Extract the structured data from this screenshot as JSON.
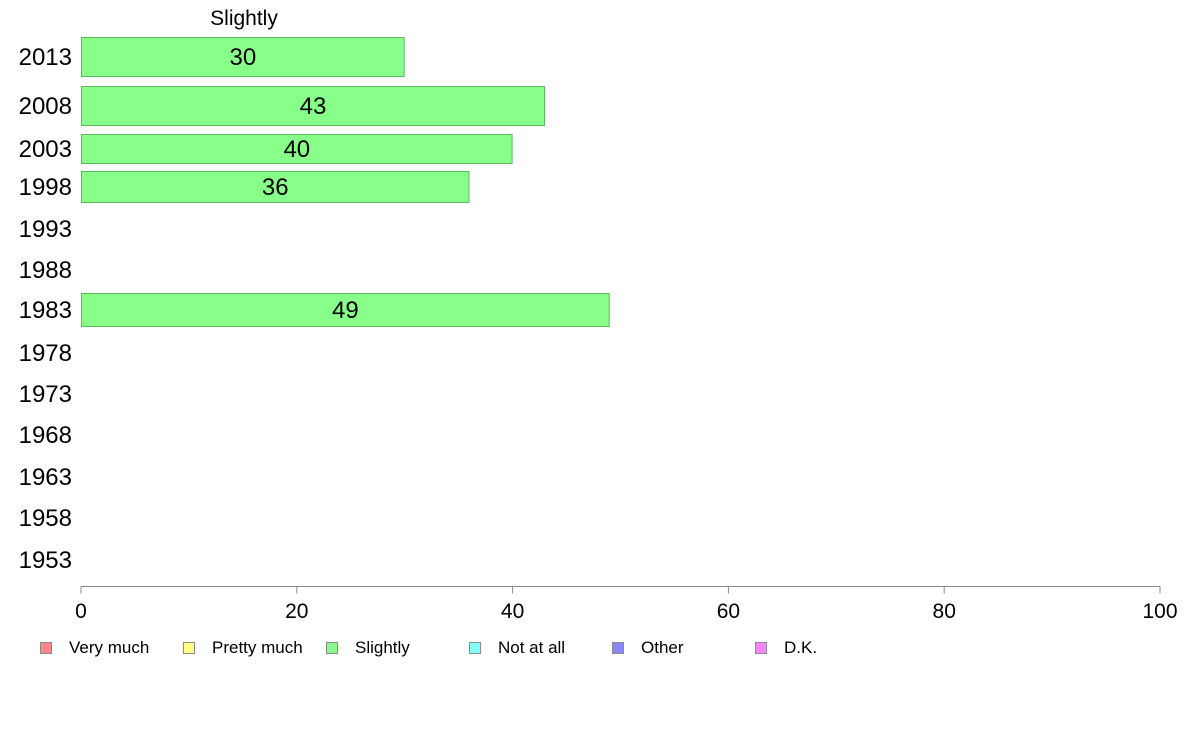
{
  "chart_data": {
    "type": "bar",
    "orientation": "horizontal",
    "title": "Slightly",
    "categories": [
      "2013",
      "2008",
      "2003",
      "1998",
      "1993",
      "1988",
      "1983",
      "1978",
      "1973",
      "1968",
      "1963",
      "1958",
      "1953"
    ],
    "series": [
      {
        "name": "Slightly",
        "values": [
          30,
          43,
          40,
          36,
          null,
          null,
          49,
          null,
          null,
          null,
          null,
          null,
          null
        ]
      }
    ],
    "xlim": [
      0,
      100
    ],
    "xticks": [
      0,
      20,
      40,
      60,
      80,
      100
    ],
    "grid": false,
    "legend_position": "bottom",
    "bar_color": "#88ff88",
    "bar_border_color": "#5cb85c"
  },
  "legend": [
    {
      "label": "Very much",
      "color": "#ff8888"
    },
    {
      "label": "Pretty much",
      "color": "#ffff88"
    },
    {
      "label": "Slightly",
      "color": "#88ff88"
    },
    {
      "label": "Not at all",
      "color": "#88ffff"
    },
    {
      "label": "Other",
      "color": "#8888ff"
    },
    {
      "label": "D.K.",
      "color": "#ff88ff"
    }
  ]
}
